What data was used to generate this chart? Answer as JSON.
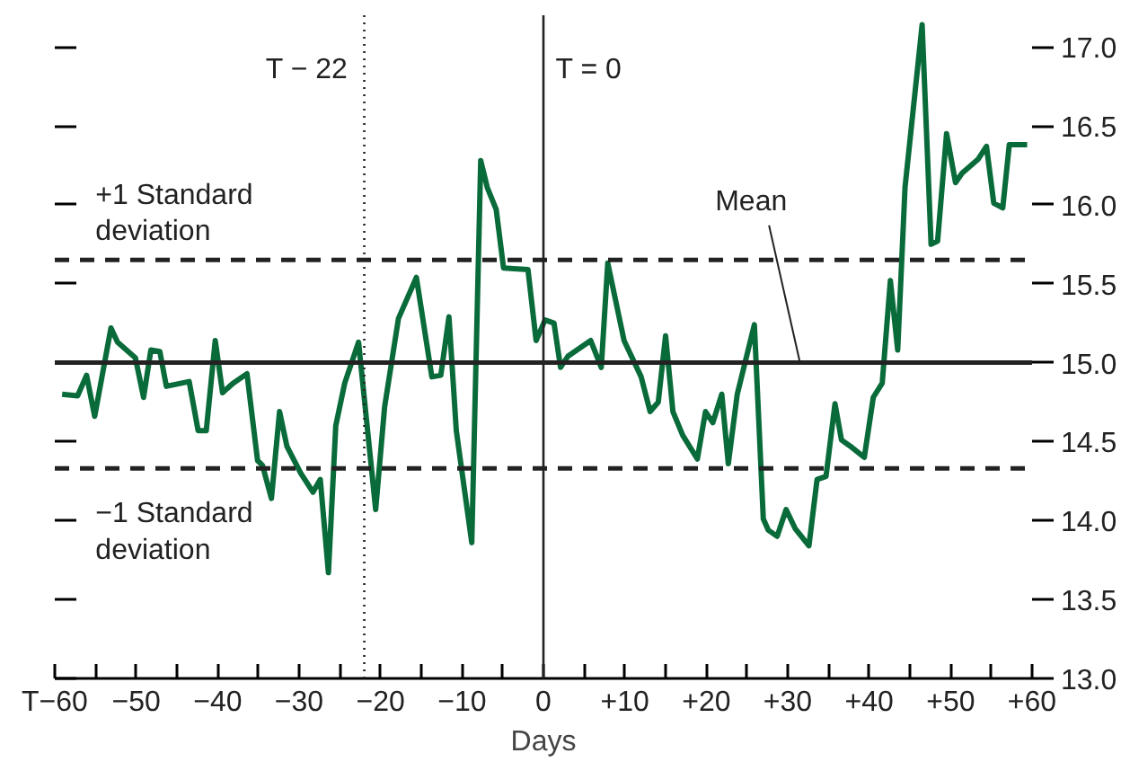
{
  "chart_data": {
    "type": "line",
    "xlabel": "Days",
    "x": [
      -59.1,
      -57.2,
      -56.1,
      -55.1,
      -53.1,
      -52.3,
      -50.1,
      -49.1,
      -48.2,
      -47.1,
      -46.3,
      -43.5,
      -42.4,
      -41.4,
      -40.3,
      -39.4,
      -38.1,
      -36.4,
      -35.1,
      -34.5,
      -33.4,
      -32.4,
      -31.5,
      -29.8,
      -28.3,
      -27.4,
      -26.4,
      -25.5,
      -24.4,
      -22.7,
      -20.6,
      -19.5,
      -17.8,
      -15.6,
      -13.7,
      -12.6,
      -11.6,
      -10.7,
      -8.8,
      -7.7,
      -6.9,
      -5.8,
      -4.9,
      -1.9,
      -0.9,
      0.2,
      1.3,
      2.1,
      3.0,
      5.8,
      7.1,
      7.9,
      9.9,
      12.0,
      13.1,
      14.1,
      15.0,
      15.9,
      17.1,
      18.9,
      19.9,
      20.8,
      21.9,
      22.7,
      23.8,
      25.9,
      27.0,
      27.6,
      28.7,
      29.8,
      30.9,
      32.6,
      33.6,
      34.7,
      35.8,
      36.6,
      37.7,
      39.4,
      40.5,
      41.6,
      42.6,
      43.5,
      44.4,
      46.5,
      47.6,
      48.4,
      49.5,
      50.6,
      51.4,
      53.4,
      54.4,
      55.3,
      56.4,
      57.2,
      59.4
    ],
    "series": [
      {
        "color": "#0a6b3a",
        "values": [
          14.8,
          14.79,
          14.92,
          14.66,
          15.22,
          15.13,
          15.03,
          14.78,
          15.08,
          15.07,
          14.85,
          14.88,
          14.57,
          14.57,
          15.14,
          14.81,
          14.87,
          14.93,
          14.38,
          14.35,
          14.14,
          14.69,
          14.47,
          14.3,
          14.18,
          14.26,
          13.67,
          14.6,
          14.87,
          15.13,
          14.07,
          14.72,
          15.28,
          15.54,
          14.91,
          14.92,
          15.29,
          14.57,
          13.86,
          16.28,
          16.11,
          15.97,
          15.6,
          15.59,
          15.14,
          15.27,
          15.25,
          14.97,
          15.04,
          15.14,
          14.97,
          15.63,
          15.14,
          14.91,
          14.69,
          14.75,
          15.17,
          14.69,
          14.54,
          14.39,
          14.69,
          14.62,
          14.8,
          14.36,
          14.8,
          15.24,
          14.01,
          13.94,
          13.9,
          14.07,
          13.95,
          13.84,
          14.26,
          14.28,
          14.74,
          14.51,
          14.47,
          14.4,
          14.78,
          14.87,
          15.52,
          15.08,
          16.11,
          17.14,
          15.75,
          15.77,
          16.45,
          16.14,
          16.2,
          16.29,
          16.37,
          16.01,
          15.98,
          16.38,
          16.38
        ]
      }
    ],
    "xlim": [
      -60,
      60
    ],
    "xticks": [
      {
        "value": -60,
        "label": "T−60"
      },
      {
        "value": -55,
        "label": null
      },
      {
        "value": -50,
        "label": "−50"
      },
      {
        "value": -45,
        "label": null
      },
      {
        "value": -40,
        "label": "−40"
      },
      {
        "value": -35,
        "label": null
      },
      {
        "value": -30,
        "label": "−30"
      },
      {
        "value": -25,
        "label": null
      },
      {
        "value": -20,
        "label": "−20"
      },
      {
        "value": -15,
        "label": null
      },
      {
        "value": -10,
        "label": "−10"
      },
      {
        "value": -5,
        "label": null
      },
      0,
      {
        "value": 5,
        "label": null
      },
      {
        "value": 10,
        "label": "+10"
      },
      {
        "value": 15,
        "label": null
      },
      {
        "value": 20,
        "label": "+20"
      },
      {
        "value": 25,
        "label": null
      },
      {
        "value": 30,
        "label": "+30"
      },
      {
        "value": 35,
        "label": null
      },
      {
        "value": 40,
        "label": "+40"
      },
      {
        "value": 45,
        "label": null
      },
      {
        "value": 50,
        "label": "+50"
      },
      {
        "value": 55,
        "label": null
      },
      {
        "value": 60,
        "label": "+60"
      }
    ],
    "ylim": [
      13,
      17.2
    ],
    "yticks": [
      {
        "value": 13,
        "label": "13.0"
      },
      {
        "value": 13.5,
        "label": "13.5"
      },
      {
        "value": 14,
        "label": "14.0"
      },
      {
        "value": 14.5,
        "label": "14.5"
      },
      {
        "value": 15,
        "label": "15.0"
      },
      {
        "value": 15.5,
        "label": "15.5"
      },
      {
        "value": 16,
        "label": "16.0"
      },
      {
        "value": 16.5,
        "label": "16.5"
      },
      {
        "value": 17,
        "label": "17.0"
      }
    ],
    "ref_lines": [
      {
        "axis": "x",
        "value": -22,
        "label": "T − 22",
        "line_style": "dotted",
        "color": "#222222"
      },
      {
        "axis": "x",
        "value": 0,
        "label": "T = 0",
        "line_style": "solid",
        "color": "#222222"
      },
      {
        "axis": "y",
        "value": 15.65,
        "label": "+1 Standard\ndeviation",
        "line_style": "dashed",
        "color": "#222222"
      },
      {
        "axis": "y",
        "value": 14.33,
        "label": "−1 Standard\ndeviation",
        "line_style": "dashed",
        "color": "#222222"
      },
      {
        "axis": "y",
        "value": 15.0,
        "label": "Mean",
        "line_style": "solid",
        "color": "#222222"
      }
    ],
    "marker": "none",
    "line_style": "solid"
  }
}
